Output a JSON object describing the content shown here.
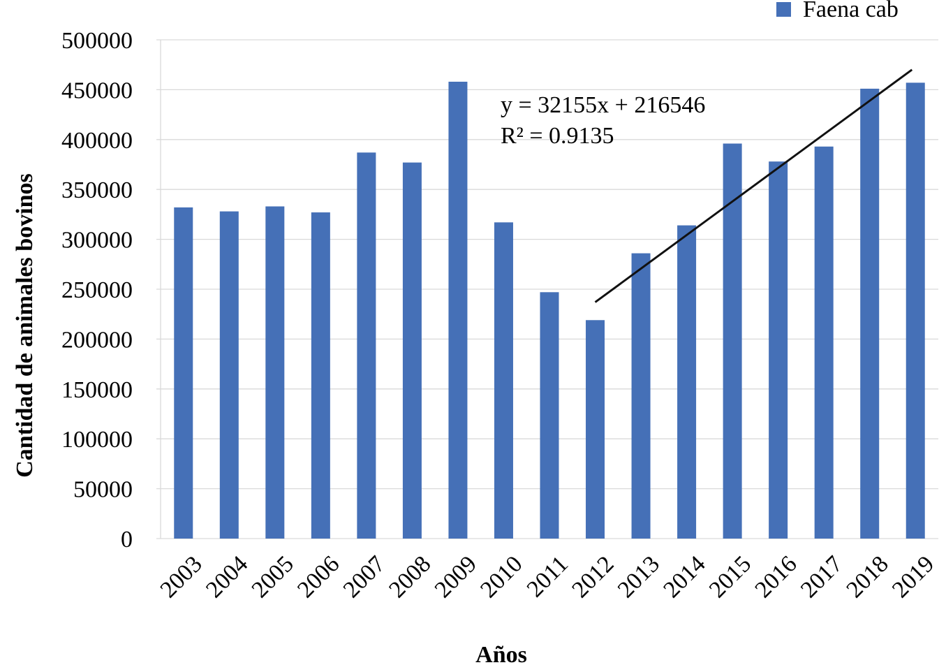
{
  "chart_data": {
    "type": "bar",
    "x_label": "Años",
    "y_label": "Cantidad de animales bovinos",
    "categories": [
      "2003",
      "2004",
      "2005",
      "2006",
      "2007",
      "2008",
      "2009",
      "2010",
      "2011",
      "2012",
      "2013",
      "2014",
      "2015",
      "2016",
      "2017",
      "2018",
      "2019"
    ],
    "series": [
      {
        "name": "Faena cab",
        "color": "#4570b7",
        "values": [
          332000,
          328000,
          333000,
          327000,
          387000,
          377000,
          458000,
          317000,
          247000,
          219000,
          286000,
          314000,
          396000,
          378000,
          393000,
          451000,
          457000
        ]
      }
    ],
    "trendline": {
      "equation": "y = 32155x + 216546",
      "r2": "R² = 0.9135",
      "color": "#111111",
      "x": [
        "2012",
        "2019"
      ],
      "values": [
        237000,
        470000
      ]
    },
    "ylim": [
      0,
      500000
    ],
    "yticks": [
      0,
      50000,
      100000,
      150000,
      200000,
      250000,
      300000,
      350000,
      400000,
      450000,
      500000
    ],
    "grid": true,
    "legend": "top-right"
  }
}
